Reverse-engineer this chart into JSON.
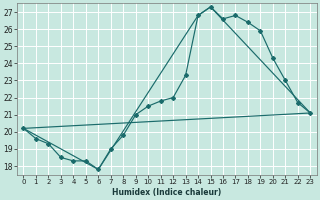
{
  "xlabel": "Humidex (Indice chaleur)",
  "bg_color": "#c8e8e0",
  "line_color": "#1a6b6b",
  "grid_color": "#ffffff",
  "xlim": [
    -0.5,
    23.5
  ],
  "ylim": [
    17.5,
    27.5
  ],
  "xticks": [
    0,
    1,
    2,
    3,
    4,
    5,
    6,
    7,
    8,
    9,
    10,
    11,
    12,
    13,
    14,
    15,
    16,
    17,
    18,
    19,
    20,
    21,
    22,
    23
  ],
  "yticks": [
    18,
    19,
    20,
    21,
    22,
    23,
    24,
    25,
    26,
    27
  ],
  "line1_x": [
    0,
    1,
    2,
    3,
    4,
    5,
    6,
    7,
    8,
    9,
    10,
    11,
    12,
    13,
    14,
    15,
    16,
    17,
    18,
    19,
    20,
    21,
    22,
    23
  ],
  "line1_y": [
    20.2,
    19.6,
    19.3,
    18.5,
    18.3,
    18.3,
    17.8,
    19.0,
    19.8,
    21.0,
    21.5,
    21.8,
    22.0,
    23.3,
    26.8,
    27.3,
    26.6,
    26.8,
    26.4,
    25.9,
    24.3,
    23.0,
    21.7,
    21.1
  ],
  "line2_x": [
    0,
    23
  ],
  "line2_y": [
    20.2,
    21.1
  ],
  "line3_x": [
    0,
    6,
    14,
    15,
    23
  ],
  "line3_y": [
    20.2,
    17.8,
    26.8,
    27.3,
    21.1
  ]
}
